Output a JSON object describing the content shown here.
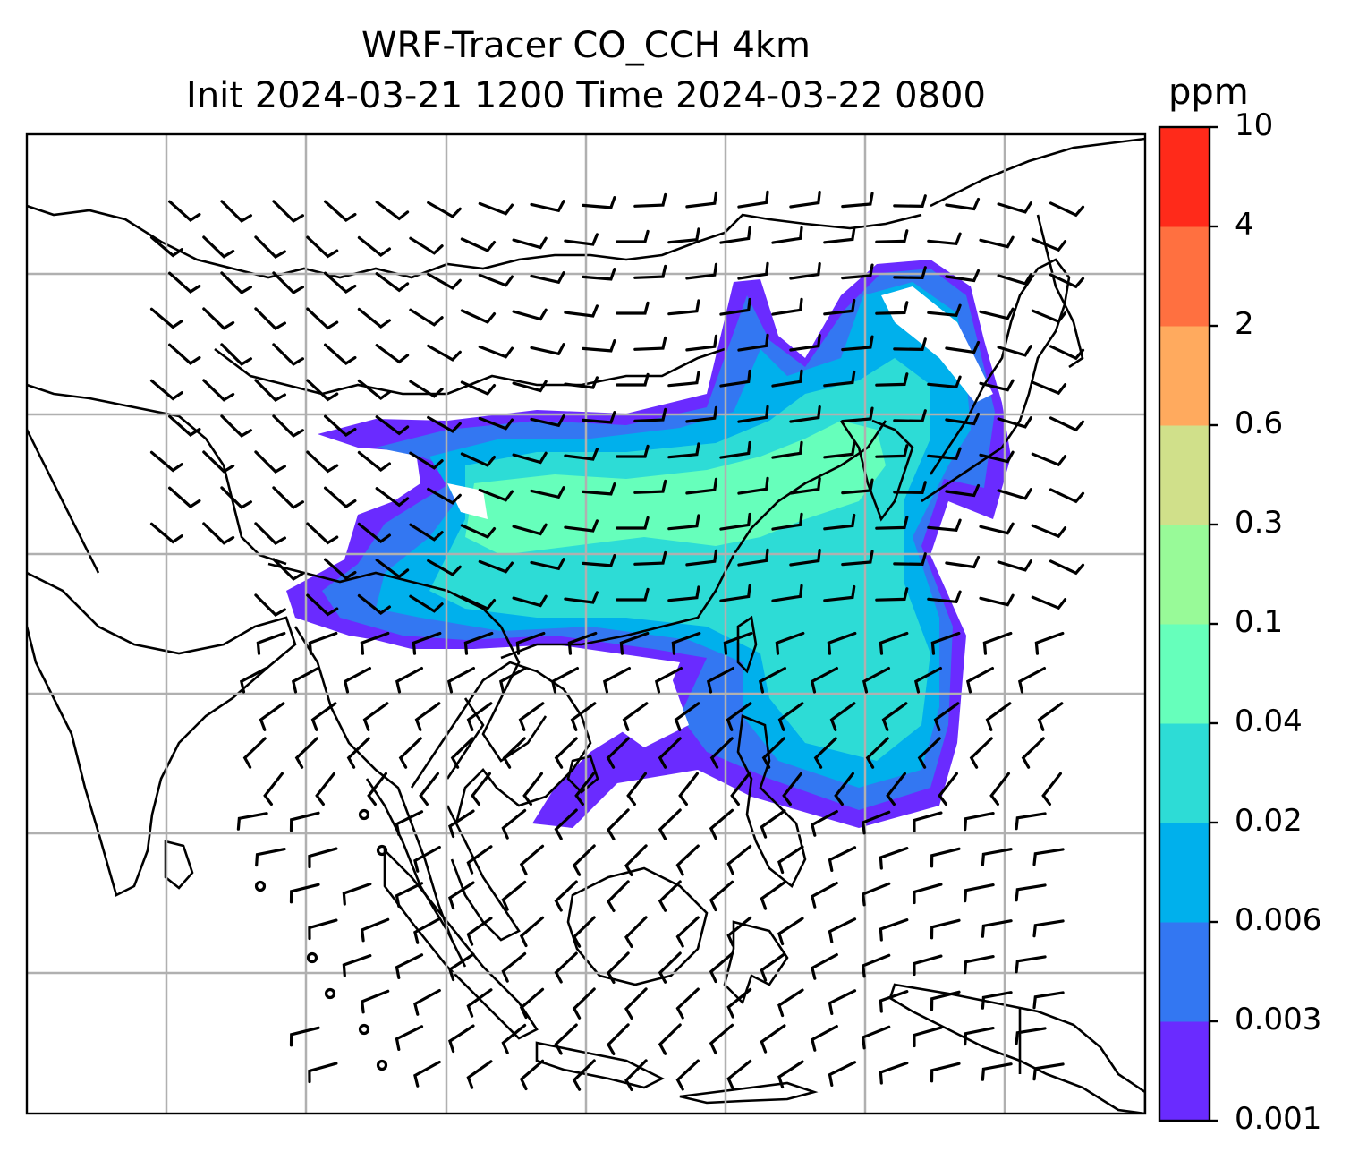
{
  "title": {
    "line1": "WRF-Tracer CO_CCH 4km",
    "line2": "Init 2024-03-21 1200 Time 2024-03-22 0800"
  },
  "colorbar": {
    "unit": "ppm",
    "levels": [
      "0.001",
      "0.003",
      "0.006",
      "0.02",
      "0.04",
      "0.1",
      "0.3",
      "0.6",
      "2",
      "4",
      "10"
    ],
    "colors": [
      "#6a2bff",
      "#3377f2",
      "#00b0ec",
      "#2ddcd6",
      "#66ffbb",
      "#98fa98",
      "#d0e08a",
      "#ffaa5e",
      "#ff7040",
      "#ff2a1a"
    ]
  },
  "map": {
    "gridlines": true,
    "background": "#ffffff",
    "coastline_color": "#000000",
    "gridline_color": "#b0b0b0",
    "wind_barbs": true
  }
}
